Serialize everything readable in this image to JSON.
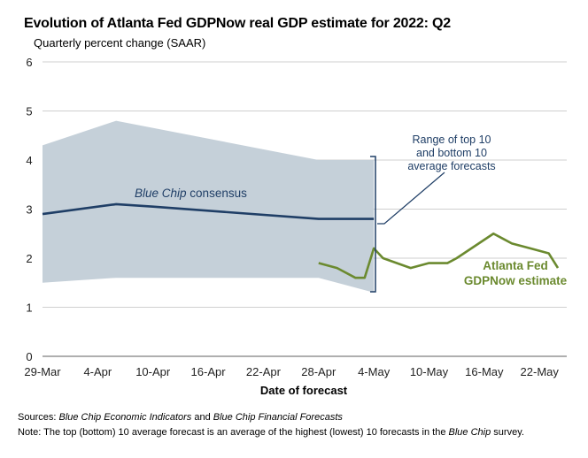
{
  "title": "Evolution of Atlanta Fed GDPNow real GDP estimate for 2022: Q2",
  "subtitle": "Quarterly percent change (SAAR)",
  "footer": {
    "sources_label": "Sources:",
    "sources_italic1": "Blue Chip Economic Indicators",
    "sources_and": " and ",
    "sources_italic2": "Blue Chip Financial Forecasts",
    "note_label": "Note",
    "note_text": ": The top (bottom) 10 average forecast is an average of the highest (lowest) 10 forecasts in the ",
    "note_italic": "Blue Chip",
    "note_end": " survey."
  },
  "annotations": {
    "range_line1": "Range of top 10",
    "range_line2": "and bottom 10",
    "range_line3": "average forecasts",
    "bluechip_italic": "Blue Chip",
    "bluechip_rest": " consensus",
    "gdpnow_line1": "Atlanta Fed",
    "gdpnow_line2": "GDPNow estimate"
  },
  "colors": {
    "band": "#c5d0d9",
    "consensus": "#1f3e66",
    "gdpnow": "#6b8a2f",
    "grid": "#bfbfbf"
  },
  "chart_data": {
    "type": "line",
    "title": "Evolution of Atlanta Fed GDPNow real GDP estimate for 2022: Q2",
    "subtitle": "Quarterly percent change (SAAR)",
    "xlabel": "Date of forecast",
    "ylabel": "",
    "x_start_day": 0,
    "x_end_day": 56,
    "ylim": [
      0,
      6
    ],
    "yticks": [
      0,
      1,
      2,
      3,
      4,
      5,
      6
    ],
    "xticks": [
      {
        "day": 0,
        "label": "29-Mar"
      },
      {
        "day": 6,
        "label": "4-Apr"
      },
      {
        "day": 12,
        "label": "10-Apr"
      },
      {
        "day": 18,
        "label": "16-Apr"
      },
      {
        "day": 24,
        "label": "22-Apr"
      },
      {
        "day": 30,
        "label": "28-Apr"
      },
      {
        "day": 36,
        "label": "4-May"
      },
      {
        "day": 42,
        "label": "10-May"
      },
      {
        "day": 48,
        "label": "16-May"
      },
      {
        "day": 54,
        "label": "22-May"
      }
    ],
    "grid": true,
    "range_band": {
      "name": "Range of top 10 and bottom 10 average forecasts",
      "x": [
        0,
        8,
        30,
        36
      ],
      "top": [
        4.3,
        4.8,
        4.0,
        4.0
      ],
      "bottom": [
        1.5,
        1.6,
        1.6,
        1.3
      ]
    },
    "series": [
      {
        "name": "Blue Chip consensus",
        "x": [
          0,
          8,
          12,
          30,
          36
        ],
        "values": [
          2.9,
          3.1,
          3.05,
          2.8,
          2.8
        ]
      },
      {
        "name": "Atlanta Fed GDPNow estimate",
        "x": [
          30,
          32,
          34,
          35,
          36,
          37,
          40,
          42,
          44,
          45,
          49,
          50,
          51,
          53,
          55,
          56
        ],
        "values": [
          1.9,
          1.8,
          1.6,
          1.6,
          2.2,
          2.0,
          1.8,
          1.9,
          1.9,
          2.0,
          2.5,
          2.4,
          2.3,
          2.2,
          2.1,
          1.8
        ]
      }
    ]
  }
}
